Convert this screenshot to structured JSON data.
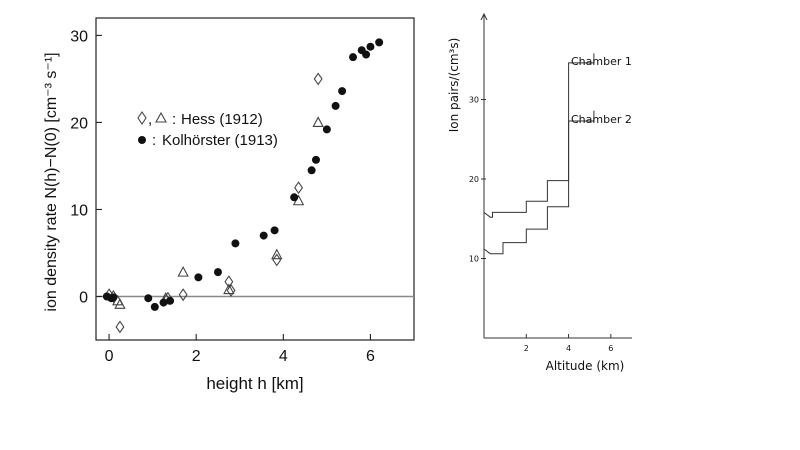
{
  "chart_data": [
    {
      "type": "scatter",
      "title": "",
      "xlabel": "height h [km]",
      "ylabel": "ion density rate N(h)−N(0) [cm⁻³ s⁻¹]",
      "xlim": [
        -0.3,
        7.0
      ],
      "ylim": [
        -5,
        32
      ],
      "xticks": [
        0,
        2,
        4,
        6
      ],
      "yticks": [
        0,
        10,
        20,
        30
      ],
      "zero_line": true,
      "grid": false,
      "legend": {
        "placement": "upper-left",
        "hess_label": "Hess (1912)",
        "kolhorster_label": "Kolhörster (1913)",
        "separator": ",",
        "colon": ":"
      },
      "series": [
        {
          "name": "Hess (1912)",
          "marker": "diamond",
          "points": [
            [
              0.0,
              0.2
            ],
            [
              0.1,
              0.0
            ],
            [
              0.25,
              -3.5
            ],
            [
              1.35,
              -0.2
            ],
            [
              1.7,
              0.2
            ],
            [
              2.75,
              1.7
            ],
            [
              2.8,
              0.7
            ],
            [
              3.85,
              4.2
            ],
            [
              4.35,
              12.5
            ],
            [
              4.8,
              25.0
            ]
          ]
        },
        {
          "name": "Hess (1912)",
          "marker": "triangle",
          "points": [
            [
              0.2,
              -0.5
            ],
            [
              0.25,
              -0.9
            ],
            [
              1.3,
              -0.2
            ],
            [
              1.7,
              2.8
            ],
            [
              2.75,
              0.8
            ],
            [
              3.85,
              4.8
            ],
            [
              4.35,
              11.0
            ],
            [
              4.8,
              20.0
            ]
          ]
        },
        {
          "name": "Kolhörster (1913)",
          "marker": "circle",
          "points": [
            [
              -0.05,
              0.0
            ],
            [
              0.05,
              -0.2
            ],
            [
              0.1,
              -0.1
            ],
            [
              0.9,
              -0.2
            ],
            [
              1.05,
              -1.2
            ],
            [
              1.25,
              -0.7
            ],
            [
              1.4,
              -0.5
            ],
            [
              2.05,
              2.2
            ],
            [
              2.5,
              2.8
            ],
            [
              2.9,
              6.1
            ],
            [
              3.55,
              7.0
            ],
            [
              3.8,
              7.6
            ],
            [
              4.25,
              11.4
            ],
            [
              4.65,
              14.5
            ],
            [
              4.75,
              15.7
            ],
            [
              5.0,
              19.2
            ],
            [
              5.2,
              21.9
            ],
            [
              5.35,
              23.6
            ],
            [
              5.6,
              27.5
            ],
            [
              5.8,
              28.3
            ],
            [
              5.9,
              27.8
            ],
            [
              6.0,
              28.7
            ],
            [
              6.2,
              29.2
            ]
          ]
        }
      ]
    },
    {
      "type": "line",
      "title": "",
      "xlabel": "Altitude (km)",
      "ylabel": "Ion pairs/(cm³s)",
      "xlim": [
        0,
        7
      ],
      "ylim": [
        0,
        40
      ],
      "xticks": [
        2,
        4,
        6
      ],
      "yticks": [
        10,
        20,
        30
      ],
      "series": [
        {
          "name": "Chamber 1",
          "x": [
            0,
            0.3,
            0.7,
            1.0,
            2.0,
            3.0,
            4.0,
            5.2
          ],
          "y": [
            15.8,
            15.2,
            15.8,
            15.8,
            17.2,
            19.8,
            34.6,
            35.8
          ],
          "step": [
            [
              0,
              15.8
            ],
            [
              0.3,
              15.2
            ],
            [
              0.4,
              15.2
            ],
            [
              0.4,
              15.8
            ],
            [
              2,
              15.8
            ],
            [
              2,
              17.2
            ],
            [
              3,
              17.2
            ],
            [
              3,
              19.8
            ],
            [
              4,
              19.8
            ],
            [
              4,
              34.6
            ],
            [
              5.2,
              34.6
            ],
            [
              5.2,
              35.8
            ]
          ]
        },
        {
          "name": "Chamber 2",
          "step": [
            [
              0,
              11.2
            ],
            [
              0.3,
              10.6
            ],
            [
              0.9,
              10.6
            ],
            [
              0.9,
              12.0
            ],
            [
              2,
              12.0
            ],
            [
              2,
              13.7
            ],
            [
              3,
              13.7
            ],
            [
              3,
              16.5
            ],
            [
              4,
              16.5
            ],
            [
              4,
              27.3
            ],
            [
              5.2,
              27.3
            ],
            [
              5.2,
              28.6
            ]
          ]
        }
      ],
      "annotations": [
        "Chamber 1",
        "Chamber 2"
      ]
    }
  ]
}
